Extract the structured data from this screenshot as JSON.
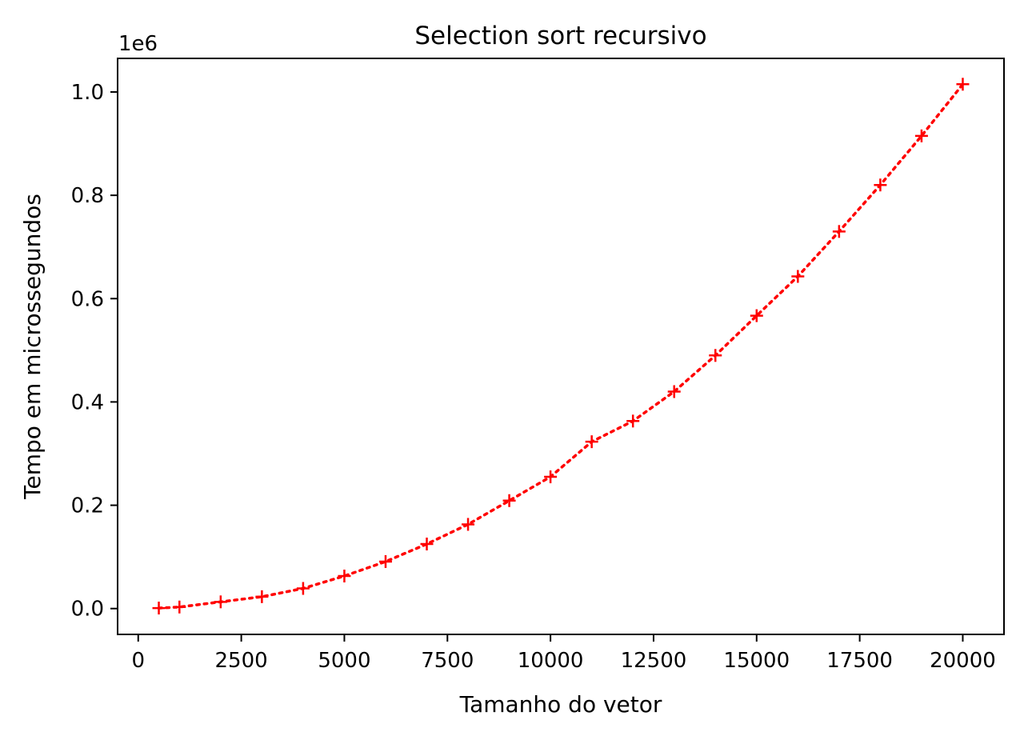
{
  "chart_data": {
    "type": "line",
    "title": "Selection sort recursivo",
    "xlabel": "Tamanho do vetor",
    "ylabel": "Tempo em microssegundos",
    "y_offset_label": "1e6",
    "xlim": [
      -500,
      21000
    ],
    "ylim": [
      -0.05,
      1.065
    ],
    "x_ticks": [
      0,
      2500,
      5000,
      7500,
      10000,
      12500,
      15000,
      17500,
      20000
    ],
    "x_tick_labels": [
      "0",
      "2500",
      "5000",
      "7500",
      "10000",
      "12500",
      "15000",
      "17500",
      "20000"
    ],
    "y_ticks": [
      0.0,
      0.2,
      0.4,
      0.6,
      0.8,
      1.0
    ],
    "y_tick_labels": [
      "0.0",
      "0.2",
      "0.4",
      "0.6",
      "0.8",
      "1.0"
    ],
    "grid": false,
    "legend": null,
    "series": [
      {
        "color": "#ff0000",
        "line_style": "dotted",
        "marker": "plus",
        "x": [
          500,
          1000,
          2000,
          3000,
          4000,
          5000,
          6000,
          7000,
          8000,
          9000,
          10000,
          11000,
          12000,
          13000,
          14000,
          15000,
          16000,
          17000,
          18000,
          19000,
          20000
        ],
        "y": [
          0.001,
          0.003,
          0.013,
          0.023,
          0.039,
          0.063,
          0.091,
          0.125,
          0.163,
          0.209,
          0.255,
          0.323,
          0.363,
          0.42,
          0.49,
          0.567,
          0.643,
          0.73,
          0.82,
          0.915,
          1.015
        ]
      }
    ]
  }
}
